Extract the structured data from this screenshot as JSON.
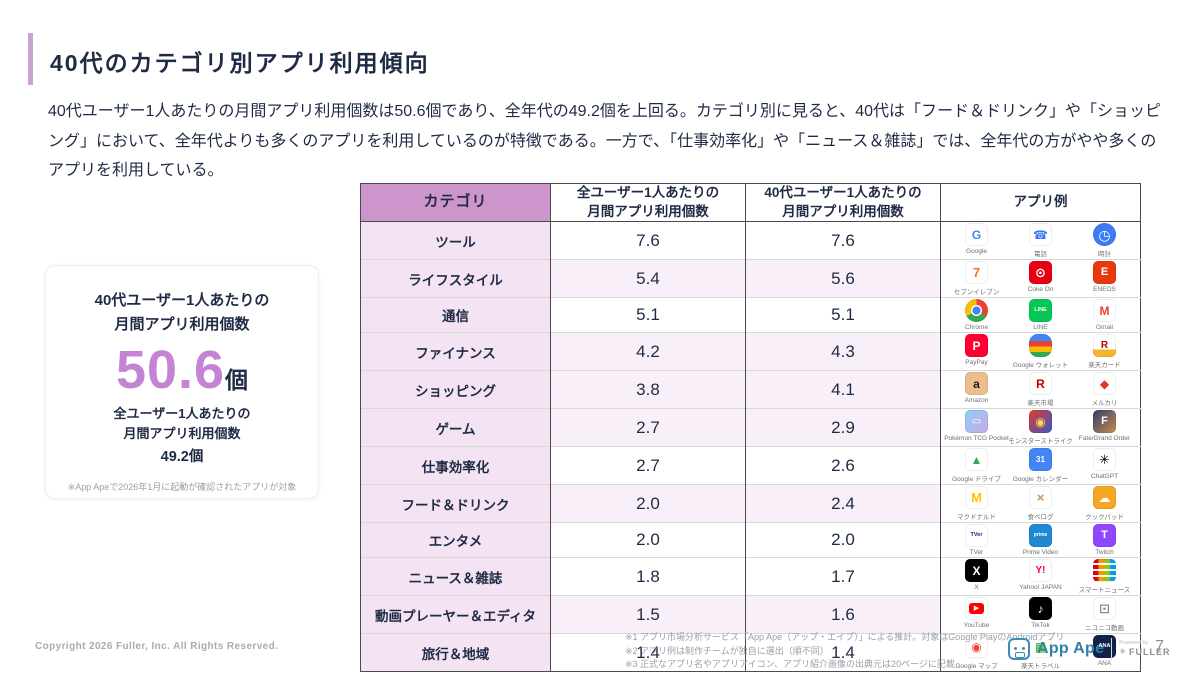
{
  "slide": {
    "title": "40代のカテゴリ別アプリ利用傾向",
    "description": "40代ユーザー1人あたりの月間アプリ利用個数は50.6個であり、全年代の49.2個を上回る。カテゴリ別に見ると、40代は「フード＆ドリンク」や「ショッピング」において、全年代よりも多くのアプリを利用しているのが特徴である。一方で、「仕事効率化」や「ニュース＆雑誌」では、全年代の方がやや多くのアプリを利用している。",
    "copyright": "Copyright 2026 Fuller, Inc. All Rights Reserved.",
    "page_number": "7"
  },
  "summary_card": {
    "title": "40代ユーザー1人あたりの\n月間アプリ利用個数",
    "big_value": "50.6",
    "big_unit": "個",
    "sub_title": "全ユーザー1人あたりの\n月間アプリ利用個数",
    "sub_value": "49.2個",
    "note": "※App Apeで2026年1月に起動が確認されたアプリが対象"
  },
  "table": {
    "headers": [
      "カテゴリ",
      "全ユーザー1人あたりの\n月間アプリ利用個数",
      "40代ユーザー1人あたりの\n月間アプリ利用個数",
      "アプリ例"
    ],
    "rows": [
      {
        "category": "ツール",
        "all_users": "7.6",
        "forties": "7.6",
        "highlight": false,
        "apps": [
          {
            "n": "google-icon",
            "label": "Google",
            "bg": "#ffffff",
            "fg": "#4285F4",
            "g": "G",
            "gs": 12
          },
          {
            "n": "phone-icon",
            "label": "電話",
            "bg": "#ffffff",
            "fg": "#3B76F6",
            "g": "☎",
            "gs": 12
          },
          {
            "n": "clock-icon",
            "label": "時計",
            "cls": "circle",
            "bg": "#3D7BF5",
            "fg": "#ffffff",
            "g": "◷",
            "gs": 14
          }
        ]
      },
      {
        "category": "ライフスタイル",
        "all_users": "5.4",
        "forties": "5.6",
        "highlight": true,
        "apps": [
          {
            "n": "seven-eleven-icon",
            "label": "セブンイレブン",
            "bg": "#ffffff",
            "fg": "#F37021",
            "g": "7",
            "gs": 13
          },
          {
            "n": "coke-on-icon",
            "label": "Coke On",
            "bg": "#E60012",
            "fg": "#ffffff",
            "g": "⊙",
            "gs": 13
          },
          {
            "n": "eneos-icon",
            "label": "ENEOS",
            "bg": "#E8380D",
            "fg": "#ffffff",
            "g": "E",
            "gs": 11
          }
        ]
      },
      {
        "category": "通信",
        "all_users": "5.1",
        "forties": "5.1",
        "highlight": false,
        "apps": [
          {
            "n": "chrome-icon",
            "label": "Chrome",
            "cls": "chrome",
            "g": ""
          },
          {
            "n": "line-icon",
            "label": "LINE",
            "bg": "#06C755",
            "fg": "#ffffff",
            "g": "LINE",
            "gs": 5.5
          },
          {
            "n": "gmail-icon",
            "label": "Gmail",
            "bg": "#ffffff",
            "fg": "#EA4335",
            "g": "M",
            "gs": 12
          }
        ]
      },
      {
        "category": "ファイナンス",
        "all_users": "4.2",
        "forties": "4.3",
        "highlight": true,
        "apps": [
          {
            "n": "paypay-icon",
            "label": "PayPay",
            "bg": "#FF0033",
            "fg": "#ffffff",
            "g": "P",
            "gs": 12
          },
          {
            "n": "google-wallet-icon",
            "label": "Google ウォレット",
            "cls": "wallet",
            "g": ""
          },
          {
            "n": "rakuten-card-icon",
            "label": "楽天カード",
            "cls": "rakuten-card",
            "fg": "#BF0000",
            "g": "R",
            "gs": 10
          }
        ]
      },
      {
        "category": "ショッピング",
        "all_users": "3.8",
        "forties": "4.1",
        "highlight": true,
        "apps": [
          {
            "n": "amazon-icon",
            "label": "Amazon",
            "bg": "#EDBE8D",
            "fg": "#1A1A1A",
            "g": "a",
            "gs": 12
          },
          {
            "n": "rakuten-ichiba-icon",
            "label": "楽天市場",
            "bg": "#ffffff",
            "fg": "#BF0000",
            "g": "R",
            "gs": 12
          },
          {
            "n": "mercari-icon",
            "label": "メルカリ",
            "bg": "#ffffff",
            "fg": "#E5332A",
            "g": "◆",
            "gs": 12
          }
        ]
      },
      {
        "category": "ゲーム",
        "all_users": "2.7",
        "forties": "2.9",
        "highlight": true,
        "apps": [
          {
            "n": "pokemon-tcg-pocket-icon",
            "label": "Pokémon TCG Pocket",
            "bg": "#8FD0F2",
            "bg2": "#C9A6E8",
            "fg": "#ffffff",
            "g": "▭",
            "gs": 10
          },
          {
            "n": "monster-strike-icon",
            "label": "モンスターストライク",
            "bg": "#E23A2E",
            "bg2": "#3A57C4",
            "fg": "#FFD84D",
            "g": "◉",
            "gs": 12
          },
          {
            "n": "fate-grand-order-icon",
            "label": "Fate/Grand Order",
            "bg": "#2E3F6E",
            "bg2": "#C98B4A",
            "fg": "#ffffff",
            "g": "F",
            "gs": 11
          }
        ]
      },
      {
        "category": "仕事効率化",
        "all_users": "2.7",
        "forties": "2.6",
        "highlight": false,
        "apps": [
          {
            "n": "google-drive-icon",
            "label": "Google ドライブ",
            "bg": "#ffffff",
            "fg": "#34A853",
            "g": "▲",
            "gs": 12
          },
          {
            "n": "google-calendar-icon",
            "label": "Google カレンダー",
            "bg": "#4285F4",
            "fg": "#ffffff",
            "g": "31",
            "gs": 8
          },
          {
            "n": "chatgpt-icon",
            "label": "ChatGPT",
            "bg": "#ffffff",
            "fg": "#000000",
            "g": "✳",
            "gs": 13
          }
        ]
      },
      {
        "category": "フード＆ドリンク",
        "all_users": "2.0",
        "forties": "2.4",
        "highlight": true,
        "apps": [
          {
            "n": "mcdonalds-icon",
            "label": "マクドナルド",
            "bg": "#ffffff",
            "fg": "#FFC300",
            "g": "M",
            "gs": 13
          },
          {
            "n": "tabelog-icon",
            "label": "食べログ",
            "bg": "#ffffff",
            "fg": "#C8935A",
            "g": "×",
            "gs": 13
          },
          {
            "n": "cookpad-icon",
            "label": "クックパッド",
            "bg": "#F5A623",
            "fg": "#ffffff",
            "g": "☁",
            "gs": 12
          }
        ]
      },
      {
        "category": "エンタメ",
        "all_users": "2.0",
        "forties": "2.0",
        "highlight": false,
        "apps": [
          {
            "n": "tver-icon",
            "label": "TVer",
            "bg": "#ffffff",
            "fg": "#1D2088",
            "g": "TVer",
            "gs": 5.5
          },
          {
            "n": "prime-video-icon",
            "label": "Prime Video",
            "bg": "#1E88D2",
            "fg": "#ffffff",
            "g": "prime",
            "gs": 5
          },
          {
            "n": "twitch-icon",
            "label": "Twitch",
            "bg": "#9146FF",
            "fg": "#ffffff",
            "g": "T",
            "gs": 11
          }
        ]
      },
      {
        "category": "ニュース＆雑誌",
        "all_users": "1.8",
        "forties": "1.7",
        "highlight": false,
        "apps": [
          {
            "n": "x-icon",
            "label": "X",
            "bg": "#000000",
            "fg": "#ffffff",
            "g": "X",
            "gs": 12
          },
          {
            "n": "yahoo-japan-icon",
            "label": "Yahoo! JAPAN",
            "bg": "#ffffff",
            "fg": "#FF0033",
            "g": "Y!",
            "gs": 10
          },
          {
            "n": "smartnews-icon",
            "label": "スマートニュース",
            "cls": "smartnews",
            "g": ""
          }
        ]
      },
      {
        "category": "動画プレーヤー＆エディタ",
        "all_users": "1.5",
        "forties": "1.6",
        "highlight": true,
        "apps": [
          {
            "n": "youtube-icon",
            "label": "YouTube",
            "cls": "youtube",
            "bg": "#ffffff",
            "fg": "#ffffff",
            "g": "▶",
            "gs": 7
          },
          {
            "n": "tiktok-icon",
            "label": "TikTok",
            "bg": "#000000",
            "fg": "#ffffff",
            "g": "♪",
            "gs": 12
          },
          {
            "n": "niconico-icon",
            "label": "ニコニコ動画",
            "bg": "#ffffff",
            "fg": "#8A8A8A",
            "g": "⊡",
            "gs": 13
          }
        ]
      },
      {
        "category": "旅行＆地域",
        "all_users": "1.4",
        "forties": "1.4",
        "highlight": false,
        "apps": [
          {
            "n": "google-maps-icon",
            "label": "Google マップ",
            "bg": "#ffffff",
            "fg": "#EA4335",
            "g": "◉",
            "gs": 12
          },
          {
            "n": "rakuten-travel-icon",
            "label": "楽天トラベル",
            "bg": "#ffffff",
            "fg": "#2E9E4F",
            "g": "▦",
            "gs": 12
          },
          {
            "n": "ana-icon",
            "label": "ANA",
            "bg": "#10214B",
            "fg": "#ffffff",
            "g": "ANA",
            "gs": 5.5
          }
        ]
      }
    ]
  },
  "footnotes": [
    "※1 アプリ市場分析サービス「App Ape（アップ・エイプ）」による推計。対象はGoogle PlayのAndroidアプリ",
    "※2 アプリ例は制作チームが独自に選出（順不同）",
    "※3 正式なアプリ名やアプリアイコン、アプリ紹介画像の出典元は20ページに記載"
  ],
  "brand": {
    "name": "App Ape",
    "powered_by": "Powered by",
    "company": "FULLER",
    "mark": "✳"
  },
  "colors": {
    "accent_purple": "#C9A3D4",
    "number_purple": "#C583D4",
    "header_pink": "#CC96CC",
    "category_pink": "#F3E3F3",
    "highlight_pink": "#F8EFF8",
    "navy": "#1F2A44",
    "appape_blue": "#2F7FA8"
  }
}
